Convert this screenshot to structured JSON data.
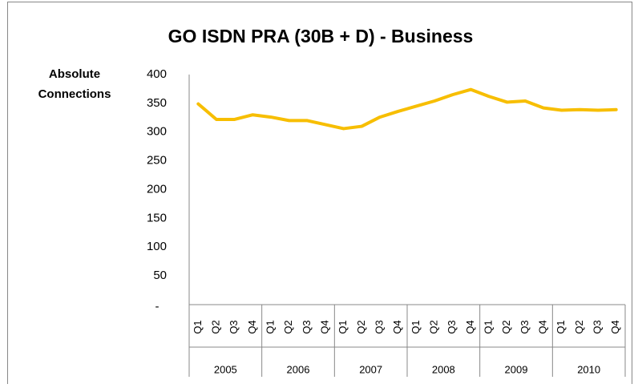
{
  "chart_data": {
    "type": "line",
    "title": "GO ISDN PRA (30B + D) - Business",
    "y_label": [
      "Absolute",
      "Connections"
    ],
    "categories": [
      "Q1",
      "Q2",
      "Q3",
      "Q4",
      "Q1",
      "Q2",
      "Q3",
      "Q4",
      "Q1",
      "Q2",
      "Q3",
      "Q4",
      "Q1",
      "Q2",
      "Q3",
      "Q4",
      "Q1",
      "Q2",
      "Q3",
      "Q4",
      "Q1",
      "Q2",
      "Q3",
      "Q4"
    ],
    "category_groups": [
      "2005",
      "2006",
      "2007",
      "2008",
      "2009",
      "2010"
    ],
    "series": [
      {
        "color": "#F7BE00",
        "values": [
          349,
          322,
          322,
          330,
          326,
          320,
          320,
          313,
          306,
          310,
          326,
          336,
          345,
          354,
          365,
          374,
          362,
          352,
          354,
          342,
          338,
          339,
          338,
          339
        ]
      }
    ],
    "ylim": [
      0,
      400
    ],
    "yticks": [
      {
        "value": 0,
        "label": "-"
      },
      50,
      100,
      150,
      200,
      250,
      300,
      350,
      400
    ],
    "grid": false
  }
}
